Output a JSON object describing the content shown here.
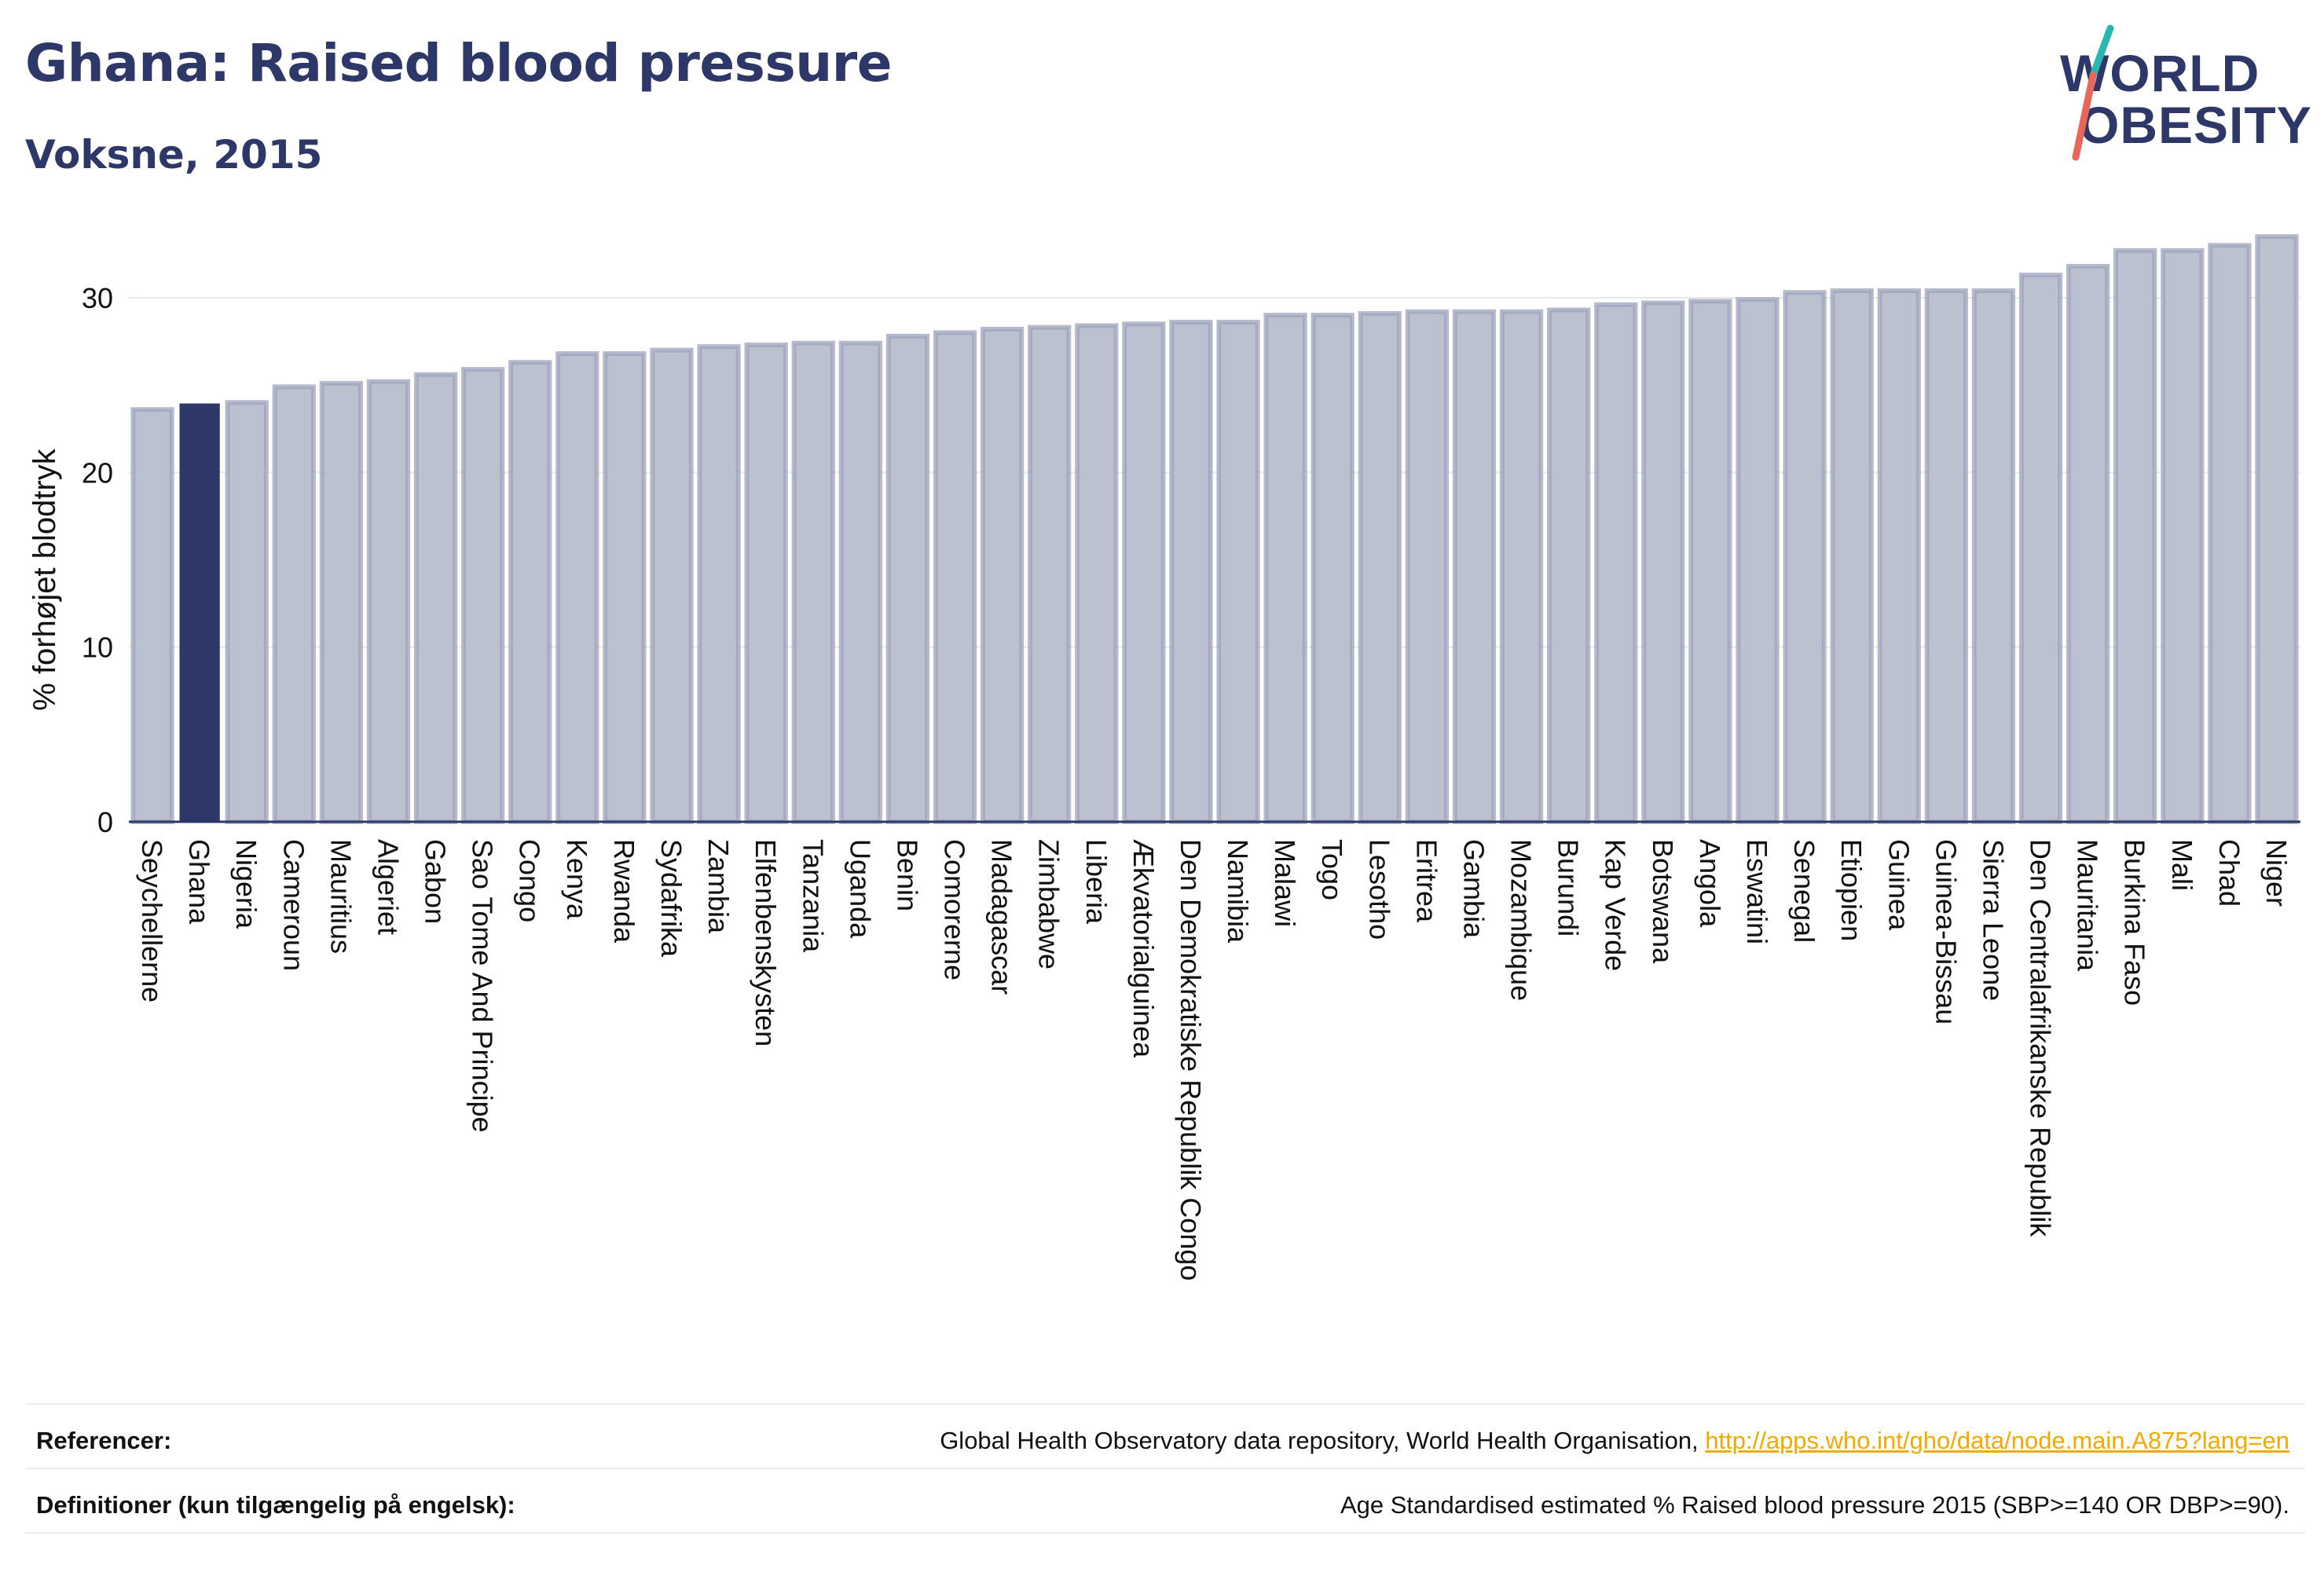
{
  "header": {
    "title": "Ghana: Raised blood pressure",
    "subtitle": "Voksne, 2015"
  },
  "logo": {
    "line1": "WORLD",
    "line2": "OBESITY",
    "colors": {
      "text": "#2d3868",
      "slash_top": "#2bb5b0",
      "slash_bottom": "#e8665a"
    }
  },
  "colors": {
    "bar_fill": "#bcc1d0",
    "bar_stroke": "#9da3bb",
    "highlight": "#2d3868",
    "grid": "#e6e8ef",
    "axis": "#2d3868"
  },
  "chart_data": {
    "type": "bar",
    "title": "Ghana: Raised blood pressure",
    "subtitle": "Voksne, 2015",
    "xlabel": "",
    "ylabel": "% forhøjet blodtryk",
    "ylim": [
      0,
      34
    ],
    "yticks": [
      0,
      10,
      20,
      30
    ],
    "grid": true,
    "highlight_category": "Ghana",
    "categories": [
      "Seychellerne",
      "Ghana",
      "Nigeria",
      "Cameroun",
      "Mauritius",
      "Algeriet",
      "Gabon",
      "Sao Tome And Principe",
      "Congo",
      "Kenya",
      "Rwanda",
      "Sydafrika",
      "Zambia",
      "Elfenbenskysten",
      "Tanzania",
      "Uganda",
      "Benin",
      "Comorerne",
      "Madagascar",
      "Zimbabwe",
      "Liberia",
      "Ækvatorialguinea",
      "Den Demokratiske Republik Congo",
      "Namibia",
      "Malawi",
      "Togo",
      "Lesotho",
      "Eritrea",
      "Gambia",
      "Mozambique",
      "Burundi",
      "Kap Verde",
      "Botswana",
      "Angola",
      "Eswatini",
      "Senegal",
      "Etiopien",
      "Guinea",
      "Guinea-Bissau",
      "Sierra Leone",
      "Den Centralafrikanske Republik",
      "Mauritania",
      "Burkina Faso",
      "Mali",
      "Chad",
      "Niger"
    ],
    "values": [
      23.6,
      23.9,
      24.0,
      24.9,
      25.1,
      25.2,
      25.6,
      25.9,
      26.3,
      26.8,
      26.8,
      27.0,
      27.2,
      27.3,
      27.4,
      27.4,
      27.8,
      28.0,
      28.2,
      28.3,
      28.4,
      28.5,
      28.6,
      28.6,
      29.0,
      29.0,
      29.1,
      29.2,
      29.2,
      29.2,
      29.3,
      29.6,
      29.7,
      29.8,
      29.9,
      30.3,
      30.4,
      30.4,
      30.4,
      30.4,
      31.3,
      31.8,
      32.7,
      32.7,
      33.0,
      33.5
    ]
  },
  "footer": {
    "references_label": "Referencer:",
    "references_text": "Global Health Observatory data repository, World Health Organisation, ",
    "references_link": "http://apps.who.int/gho/data/node.main.A875?lang=en",
    "definitions_label": "Definitioner (kun tilgængelig på engelsk):",
    "definitions_text": "Age Standardised estimated % Raised blood pressure 2015 (SBP>=140 OR DBP>=90)."
  }
}
